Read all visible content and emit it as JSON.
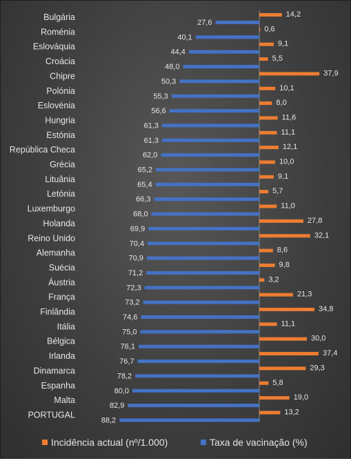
{
  "chart_data": {
    "type": "bar",
    "orientation": "diverging-horizontal",
    "categories": [
      "Bulgária",
      "Roménia",
      "Eslováquia",
      "Croácia",
      "Chipre",
      "Polónia",
      "Eslovénia",
      "Hungria",
      "Estónia",
      "República Checa",
      "Grécia",
      "Lituânia",
      "Letónia",
      "Luxemburgo",
      "Holanda",
      "Reino Unido",
      "Alemanha",
      "Suécia",
      "Áustria",
      "França",
      "Finlândia",
      "Itália",
      "Bélgica",
      "Irlanda",
      "Dinamarca",
      "Espanha",
      "Malta",
      "PORTUGAL"
    ],
    "series": [
      {
        "name": "Incidência actual (nº/1.000)",
        "color": "#ED7D31",
        "labels": [
          "14,2",
          "0,6",
          "9,1",
          "5,5",
          "37,9",
          "10,1",
          "8,0",
          "11,6",
          "11,1",
          "12,1",
          "10,0",
          "9,1",
          "5,7",
          "11,0",
          "27,8",
          "32,1",
          "8,6",
          "9,8",
          "3,2",
          "21,3",
          "34,8",
          "11,1",
          "30,0",
          "37,4",
          "29,3",
          "5,8",
          "19,0",
          "13,2"
        ],
        "values": [
          14.2,
          0.6,
          9.1,
          5.5,
          37.9,
          10.1,
          8.0,
          11.6,
          11.1,
          12.1,
          10.0,
          9.1,
          5.7,
          11.0,
          27.8,
          32.1,
          8.6,
          9.8,
          3.2,
          21.3,
          34.8,
          11.1,
          30.0,
          37.4,
          29.3,
          5.8,
          19.0,
          13.2
        ]
      },
      {
        "name": "Taxa de vacinação (%)",
        "color": "#4472C4",
        "labels": [
          "27,6",
          "40,1",
          "44,4",
          "48,0",
          "50,3",
          "55,3",
          "56,6",
          "61,3",
          "61,3",
          "62,0",
          "65,2",
          "65,4",
          "66,3",
          "68,0",
          "69,9",
          "70,4",
          "70,9",
          "71,2",
          "72,3",
          "73,2",
          "74,6",
          "75,0",
          "76,1",
          "76,7",
          "78,2",
          "80,0",
          "82,9",
          "88,2"
        ],
        "values": [
          27.6,
          40.1,
          44.4,
          48.0,
          50.3,
          55.3,
          56.6,
          61.3,
          61.3,
          62.0,
          65.2,
          65.4,
          66.3,
          68.0,
          69.9,
          70.4,
          70.9,
          71.2,
          72.3,
          73.2,
          74.6,
          75.0,
          76.1,
          76.7,
          78.2,
          80.0,
          82.9,
          88.2
        ]
      }
    ],
    "legend_position": "bottom",
    "grid": false
  }
}
